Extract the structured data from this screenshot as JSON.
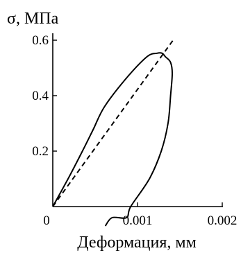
{
  "chart_data": {
    "type": "line",
    "ylabel": "σ, МПа",
    "xlabel": "Деформация, мм",
    "xlim": [
      0,
      0.002
    ],
    "ylim": [
      0,
      0.6
    ],
    "x_ticks": [
      {
        "value": 0,
        "label": "0"
      },
      {
        "value": 0.001,
        "label": "0.001"
      },
      {
        "value": 0.002,
        "label": "0.002"
      }
    ],
    "y_ticks": [
      {
        "value": 0.2,
        "label": "0.2"
      },
      {
        "value": 0.4,
        "label": "0.4"
      },
      {
        "value": 0.6,
        "label": "0.6"
      }
    ],
    "grid": false,
    "legend": "none",
    "series": [
      {
        "style": "solid",
        "color": "#000000",
        "points": [
          [
            0,
            0
          ],
          [
            0.00018,
            0.1
          ],
          [
            0.00035,
            0.2
          ],
          [
            0.00048,
            0.28
          ],
          [
            0.00061,
            0.36
          ],
          [
            0.00086,
            0.46
          ],
          [
            0.00111,
            0.54
          ],
          [
            0.00123,
            0.553
          ],
          [
            0.00129,
            0.553
          ],
          [
            0.00133,
            0.54
          ],
          [
            0.00139,
            0.52
          ],
          [
            0.00141,
            0.48
          ],
          [
            0.00139,
            0.4
          ],
          [
            0.00136,
            0.3
          ],
          [
            0.00128,
            0.2
          ],
          [
            0.00114,
            0.1
          ],
          [
            0.00092,
            0.0
          ],
          [
            0.00087,
            -0.04
          ],
          [
            0.0007,
            -0.04
          ],
          [
            0.00062,
            -0.07
          ]
        ]
      },
      {
        "style": "dashed",
        "color": "#000000",
        "points": [
          [
            0,
            0
          ],
          [
            0.00142,
            0.6
          ]
        ]
      }
    ]
  }
}
